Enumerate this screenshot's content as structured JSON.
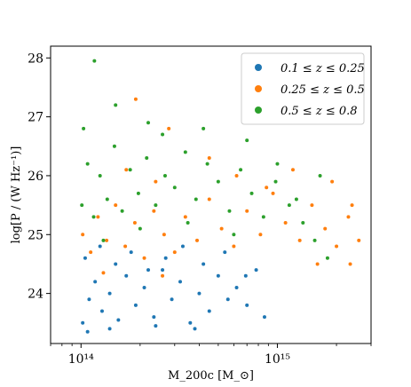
{
  "chart_data": {
    "type": "scatter",
    "title": "",
    "xlabel": "M_200c [M_⊙]",
    "ylabel": "log[P / (W Hz⁻¹)]",
    "x_scale": "log",
    "xlim": [
      70000000000000,
      3000000000000000
    ],
    "ylim": [
      23.15,
      28.2
    ],
    "x_ticks": [
      {
        "value": 100000000000000,
        "label": "10¹⁴"
      },
      {
        "value": 1000000000000000,
        "label": "10¹⁵"
      }
    ],
    "y_ticks": [
      {
        "value": 24,
        "label": "24"
      },
      {
        "value": 25,
        "label": "25"
      },
      {
        "value": 26,
        "label": "26"
      },
      {
        "value": 27,
        "label": "27"
      },
      {
        "value": 28,
        "label": "28"
      }
    ],
    "grid": false,
    "legend_position": "upper-right",
    "series": [
      {
        "name": "0.1 ≤ z ≤ 0.25",
        "color": "#1f77b4",
        "points": [
          [
            102000000000000,
            23.5
          ],
          [
            110000000000000,
            23.9
          ],
          [
            118000000000000,
            24.2
          ],
          [
            128000000000000,
            23.7
          ],
          [
            140000000000000,
            24.0
          ],
          [
            155000000000000,
            23.55
          ],
          [
            170000000000000,
            24.3
          ],
          [
            190000000000000,
            23.8
          ],
          [
            210000000000000,
            24.1
          ],
          [
            235000000000000,
            23.6
          ],
          [
            260000000000000,
            24.4
          ],
          [
            290000000000000,
            23.9
          ],
          [
            320000000000000,
            24.2
          ],
          [
            360000000000000,
            23.5
          ],
          [
            400000000000000,
            24.0
          ],
          [
            450000000000000,
            23.7
          ],
          [
            500000000000000,
            24.3
          ],
          [
            560000000000000,
            23.9
          ],
          [
            620000000000000,
            24.1
          ],
          [
            700000000000000,
            23.8
          ],
          [
            780000000000000,
            24.4
          ],
          [
            860000000000000,
            23.6
          ],
          [
            105000000000000,
            24.6
          ],
          [
            125000000000000,
            24.8
          ],
          [
            150000000000000,
            24.5
          ],
          [
            180000000000000,
            24.7
          ],
          [
            220000000000000,
            24.4
          ],
          [
            270000000000000,
            24.6
          ],
          [
            330000000000000,
            24.8
          ],
          [
            420000000000000,
            24.5
          ],
          [
            540000000000000,
            24.7
          ],
          [
            690000000000000,
            24.3
          ],
          [
            108000000000000,
            23.35
          ],
          [
            140000000000000,
            23.4
          ],
          [
            240000000000000,
            23.45
          ],
          [
            380000000000000,
            23.4
          ]
        ]
      },
      {
        "name": "0.25 ≤ z ≤ 0.5",
        "color": "#ff7f0e",
        "points": [
          [
            102000000000000,
            25.0
          ],
          [
            112000000000000,
            24.7
          ],
          [
            122000000000000,
            25.3
          ],
          [
            135000000000000,
            24.9
          ],
          [
            150000000000000,
            25.5
          ],
          [
            168000000000000,
            24.8
          ],
          [
            188000000000000,
            25.2
          ],
          [
            210000000000000,
            24.6
          ],
          [
            235000000000000,
            25.4
          ],
          [
            265000000000000,
            25.0
          ],
          [
            300000000000000,
            24.7
          ],
          [
            340000000000000,
            25.3
          ],
          [
            390000000000000,
            24.9
          ],
          [
            450000000000000,
            25.6
          ],
          [
            520000000000000,
            25.1
          ],
          [
            600000000000000,
            24.8
          ],
          [
            700000000000000,
            25.4
          ],
          [
            820000000000000,
            25.0
          ],
          [
            950000000000000,
            25.7
          ],
          [
            1100000000000000,
            25.2
          ],
          [
            1300000000000000,
            24.9
          ],
          [
            1500000000000000,
            25.5
          ],
          [
            1750000000000000,
            25.1
          ],
          [
            2000000000000000,
            24.8
          ],
          [
            2300000000000000,
            25.3
          ],
          [
            2600000000000000,
            24.9
          ],
          [
            190000000000000,
            27.3
          ],
          [
            280000000000000,
            26.8
          ],
          [
            450000000000000,
            26.3
          ],
          [
            1200000000000000,
            26.1
          ],
          [
            1900000000000000,
            25.9
          ],
          [
            2400000000000000,
            25.5
          ],
          [
            1600000000000000,
            24.5
          ],
          [
            2350000000000000,
            24.5
          ],
          [
            130000000000000,
            24.35
          ],
          [
            260000000000000,
            24.3
          ],
          [
            170000000000000,
            26.1
          ],
          [
            240000000000000,
            25.9
          ],
          [
            620000000000000,
            26.0
          ],
          [
            880000000000000,
            25.8
          ]
        ]
      },
      {
        "name": "0.5 ≤ z ≤ 0.8",
        "color": "#2ca02c",
        "points": [
          [
            101000000000000,
            25.5
          ],
          [
            108000000000000,
            26.2
          ],
          [
            116000000000000,
            25.3
          ],
          [
            125000000000000,
            26.0
          ],
          [
            136000000000000,
            25.6
          ],
          [
            148000000000000,
            26.5
          ],
          [
            162000000000000,
            25.4
          ],
          [
            178000000000000,
            26.1
          ],
          [
            196000000000000,
            25.7
          ],
          [
            216000000000000,
            26.3
          ],
          [
            240000000000000,
            25.5
          ],
          [
            268000000000000,
            26.0
          ],
          [
            300000000000000,
            25.8
          ],
          [
            340000000000000,
            26.4
          ],
          [
            385000000000000,
            25.6
          ],
          [
            440000000000000,
            26.2
          ],
          [
            500000000000000,
            25.9
          ],
          [
            570000000000000,
            25.4
          ],
          [
            650000000000000,
            26.1
          ],
          [
            740000000000000,
            25.7
          ],
          [
            850000000000000,
            25.3
          ],
          [
            980000000000000,
            25.9
          ],
          [
            1150000000000000,
            25.5
          ],
          [
            1350000000000000,
            25.2
          ],
          [
            1550000000000000,
            24.9
          ],
          [
            1800000000000000,
            24.6
          ],
          [
            117000000000000,
            27.95
          ],
          [
            150000000000000,
            27.2
          ],
          [
            103000000000000,
            26.8
          ],
          [
            220000000000000,
            26.9
          ],
          [
            420000000000000,
            26.8
          ],
          [
            130000000000000,
            24.9
          ],
          [
            200000000000000,
            25.1
          ],
          [
            350000000000000,
            25.2
          ],
          [
            600000000000000,
            25.0
          ],
          [
            1250000000000000,
            25.6
          ],
          [
            1650000000000000,
            26.0
          ],
          [
            1000000000000000,
            26.2
          ],
          [
            700000000000000,
            26.6
          ],
          [
            260000000000000,
            26.7
          ]
        ]
      }
    ]
  }
}
